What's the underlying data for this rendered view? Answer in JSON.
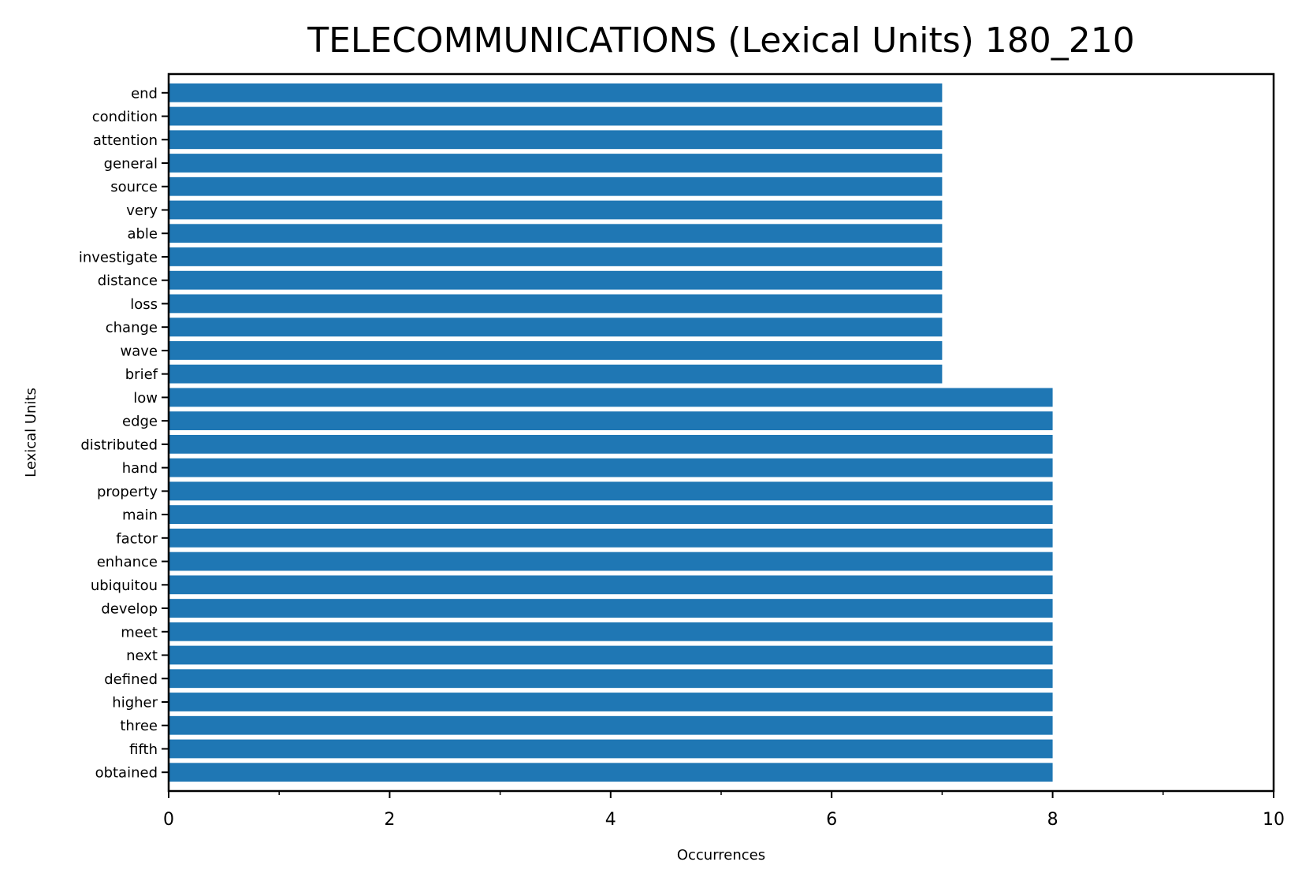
{
  "chart_data": {
    "type": "bar",
    "orientation": "horizontal",
    "title": "TELECOMMUNICATIONS (Lexical Units) 180_210",
    "xlabel": "Occurrences",
    "ylabel": "Lexical Units",
    "xlim": [
      0,
      10
    ],
    "x_ticks": [
      0,
      2,
      4,
      6,
      8,
      10
    ],
    "x_minor_ticks": [
      1,
      3,
      5,
      7,
      9
    ],
    "grid": false,
    "legend": "none",
    "bar_color": "#1f77b4",
    "categories": [
      "end",
      "condition",
      "attention",
      "general",
      "source",
      "very",
      "able",
      "investigate",
      "distance",
      "loss",
      "change",
      "wave",
      "brief",
      "low",
      "edge",
      "distributed",
      "hand",
      "property",
      "main",
      "factor",
      "enhance",
      "ubiquitou",
      "develop",
      "meet",
      "next",
      "defined",
      "higher",
      "three",
      "fifth",
      "obtained"
    ],
    "values": [
      7,
      7,
      7,
      7,
      7,
      7,
      7,
      7,
      7,
      7,
      7,
      7,
      7,
      8,
      8,
      8,
      8,
      8,
      8,
      8,
      8,
      8,
      8,
      8,
      8,
      8,
      8,
      8,
      8,
      8
    ]
  }
}
